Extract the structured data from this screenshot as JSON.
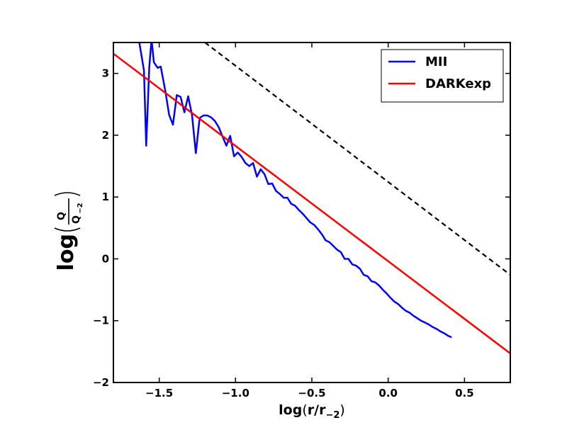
{
  "chart_data": {
    "type": "line",
    "xlabel": {
      "main": "log",
      "open": "(",
      "var": "r/r",
      "sub": "−2",
      "close": ")"
    },
    "ylabel": {
      "main": "log",
      "num": "Q",
      "den": "Q",
      "den_sub": "−2"
    },
    "xlim": [
      -1.8,
      0.8
    ],
    "ylim": [
      -2.0,
      3.5
    ],
    "x_ticks": [
      {
        "value": -1.5,
        "label": "−1.5"
      },
      {
        "value": -1.0,
        "label": "−1.0"
      },
      {
        "value": -0.5,
        "label": "−0.5"
      },
      {
        "value": 0.0,
        "label": "0.0"
      },
      {
        "value": 0.5,
        "label": "0.5"
      }
    ],
    "y_ticks": [
      {
        "value": -2,
        "label": "−2"
      },
      {
        "value": -1,
        "label": "−1"
      },
      {
        "value": 0,
        "label": "0"
      },
      {
        "value": 1,
        "label": "1"
      },
      {
        "value": 2,
        "label": "2"
      },
      {
        "value": 3,
        "label": "3"
      }
    ],
    "grid": false,
    "legend": {
      "position": "top-right"
    },
    "series": [
      {
        "name": "MII",
        "color": "#0000ff",
        "style": "solid",
        "points": [
          [
            -1.63,
            3.5
          ],
          [
            -1.6,
            3.05
          ],
          [
            -1.585,
            1.83
          ],
          [
            -1.565,
            3.1
          ],
          [
            -1.55,
            3.55
          ],
          [
            -1.535,
            3.18
          ],
          [
            -1.51,
            3.09
          ],
          [
            -1.49,
            3.11
          ],
          [
            -1.46,
            2.72
          ],
          [
            -1.435,
            2.33
          ],
          [
            -1.41,
            2.17
          ],
          [
            -1.385,
            2.65
          ],
          [
            -1.36,
            2.62
          ],
          [
            -1.335,
            2.37
          ],
          [
            -1.31,
            2.63
          ],
          [
            -1.285,
            2.33
          ],
          [
            -1.26,
            1.71
          ],
          [
            -1.235,
            2.28
          ],
          [
            -1.21,
            2.32
          ],
          [
            -1.185,
            2.32
          ],
          [
            -1.16,
            2.29
          ],
          [
            -1.135,
            2.23
          ],
          [
            -1.11,
            2.13
          ],
          [
            -1.085,
            1.98
          ],
          [
            -1.06,
            1.83
          ],
          [
            -1.035,
            1.99
          ],
          [
            -1.01,
            1.66
          ],
          [
            -0.985,
            1.72
          ],
          [
            -0.96,
            1.65
          ],
          [
            -0.935,
            1.55
          ],
          [
            -0.91,
            1.5
          ],
          [
            -0.885,
            1.55
          ],
          [
            -0.86,
            1.33
          ],
          [
            -0.835,
            1.45
          ],
          [
            -0.81,
            1.37
          ],
          [
            -0.785,
            1.21
          ],
          [
            -0.76,
            1.22
          ],
          [
            -0.735,
            1.1
          ],
          [
            -0.71,
            1.05
          ],
          [
            -0.685,
            0.99
          ],
          [
            -0.66,
            0.99
          ],
          [
            -0.635,
            0.89
          ],
          [
            -0.61,
            0.86
          ],
          [
            -0.585,
            0.79
          ],
          [
            -0.56,
            0.73
          ],
          [
            -0.535,
            0.66
          ],
          [
            -0.51,
            0.59
          ],
          [
            -0.485,
            0.55
          ],
          [
            -0.46,
            0.48
          ],
          [
            -0.435,
            0.4
          ],
          [
            -0.41,
            0.3
          ],
          [
            -0.385,
            0.27
          ],
          [
            -0.36,
            0.21
          ],
          [
            -0.335,
            0.15
          ],
          [
            -0.31,
            0.11
          ],
          [
            -0.285,
            0.0
          ],
          [
            -0.26,
            0.0
          ],
          [
            -0.235,
            -0.09
          ],
          [
            -0.21,
            -0.11
          ],
          [
            -0.185,
            -0.16
          ],
          [
            -0.16,
            -0.26
          ],
          [
            -0.135,
            -0.28
          ],
          [
            -0.11,
            -0.36
          ],
          [
            -0.085,
            -0.38
          ],
          [
            -0.06,
            -0.43
          ],
          [
            -0.035,
            -0.5
          ],
          [
            -0.01,
            -0.56
          ],
          [
            0.015,
            -0.63
          ],
          [
            0.04,
            -0.69
          ],
          [
            0.065,
            -0.73
          ],
          [
            0.09,
            -0.79
          ],
          [
            0.115,
            -0.84
          ],
          [
            0.14,
            -0.87
          ],
          [
            0.165,
            -0.92
          ],
          [
            0.19,
            -0.96
          ],
          [
            0.215,
            -1.0
          ],
          [
            0.24,
            -1.03
          ],
          [
            0.265,
            -1.06
          ],
          [
            0.29,
            -1.1
          ],
          [
            0.315,
            -1.13
          ],
          [
            0.34,
            -1.17
          ],
          [
            0.365,
            -1.2
          ],
          [
            0.39,
            -1.24
          ],
          [
            0.415,
            -1.27
          ]
        ]
      },
      {
        "name": "DARKexp",
        "color": "#ff0000",
        "style": "solid",
        "points": [
          [
            -1.8,
            3.32
          ],
          [
            0.8,
            -1.53
          ]
        ]
      },
      {
        "name": "",
        "color": "#000000",
        "style": "dashed",
        "points": [
          [
            -1.2,
            3.5
          ],
          [
            0.8,
            -0.26
          ]
        ]
      }
    ]
  }
}
